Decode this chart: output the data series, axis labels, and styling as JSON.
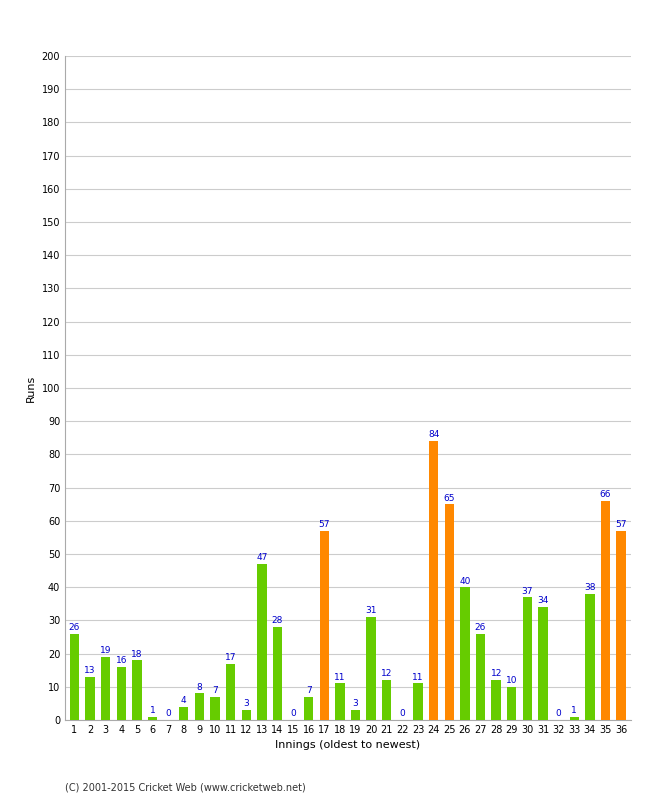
{
  "xlabel": "Innings (oldest to newest)",
  "ylabel": "Runs",
  "footer": "(C) 2001-2015 Cricket Web (www.cricketweb.net)",
  "ylim": [
    0,
    200
  ],
  "yticks": [
    0,
    10,
    20,
    30,
    40,
    50,
    60,
    70,
    80,
    90,
    100,
    110,
    120,
    130,
    140,
    150,
    160,
    170,
    180,
    190,
    200
  ],
  "innings": [
    1,
    2,
    3,
    4,
    5,
    6,
    7,
    8,
    9,
    10,
    11,
    12,
    13,
    14,
    15,
    16,
    17,
    18,
    19,
    20,
    21,
    22,
    23,
    24,
    25,
    26,
    27,
    28,
    29,
    30,
    31,
    32,
    33,
    34,
    35,
    36
  ],
  "values": [
    26,
    13,
    19,
    16,
    18,
    1,
    0,
    4,
    8,
    7,
    17,
    3,
    47,
    28,
    0,
    7,
    57,
    11,
    3,
    31,
    12,
    0,
    11,
    84,
    65,
    40,
    26,
    12,
    10,
    37,
    34,
    0,
    1,
    38,
    66,
    57
  ],
  "colors": [
    "#66cc00",
    "#66cc00",
    "#66cc00",
    "#66cc00",
    "#66cc00",
    "#66cc00",
    "#66cc00",
    "#66cc00",
    "#66cc00",
    "#66cc00",
    "#66cc00",
    "#66cc00",
    "#66cc00",
    "#66cc00",
    "#66cc00",
    "#66cc00",
    "#ff8800",
    "#66cc00",
    "#66cc00",
    "#66cc00",
    "#66cc00",
    "#66cc00",
    "#66cc00",
    "#ff8800",
    "#ff8800",
    "#66cc00",
    "#66cc00",
    "#66cc00",
    "#66cc00",
    "#66cc00",
    "#66cc00",
    "#66cc00",
    "#66cc00",
    "#66cc00",
    "#ff8800",
    "#ff8800"
  ],
  "label_color": "#0000cc",
  "bg_color": "#ffffff",
  "grid_color": "#cccccc",
  "bar_width": 0.6,
  "title_fontsize": 10,
  "axis_fontsize": 8,
  "label_fontsize": 6.5,
  "tick_fontsize": 7
}
